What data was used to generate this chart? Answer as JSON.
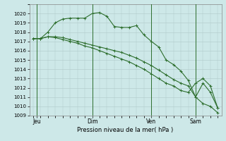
{
  "background_color": "#cde8e8",
  "grid_color": "#b0c8c8",
  "line_color": "#2d6e2d",
  "marker": "+",
  "title": "Pression niveau de la mer( hPa )",
  "ylim": [
    1009,
    1021
  ],
  "yticks": [
    1009,
    1010,
    1011,
    1012,
    1013,
    1014,
    1015,
    1016,
    1017,
    1018,
    1019,
    1020
  ],
  "day_labels": [
    "Jeu",
    "Dim",
    "Ven",
    "Sam"
  ],
  "day_positions": [
    0.5,
    8,
    16,
    22
  ],
  "series1_x": [
    0,
    1,
    2,
    3,
    4,
    5,
    6,
    7,
    8,
    9,
    10,
    11,
    12,
    13,
    14,
    15,
    16,
    17,
    18,
    19,
    20,
    21,
    22,
    23,
    24,
    25
  ],
  "series1": [
    1017.3,
    1017.3,
    1017.5,
    1017.5,
    1017.4,
    1017.2,
    1017.0,
    1016.8,
    1016.6,
    1016.4,
    1016.2,
    1016.0,
    1015.8,
    1015.5,
    1015.2,
    1014.8,
    1014.4,
    1013.9,
    1013.4,
    1012.9,
    1012.5,
    1012.2,
    1011.0,
    1010.3,
    1010.0,
    1009.3
  ],
  "series2_x": [
    0,
    1,
    2,
    3,
    4,
    5,
    6,
    7,
    8,
    9,
    10,
    11,
    12,
    13,
    14,
    15,
    16,
    17,
    18,
    19,
    20,
    21,
    22,
    23,
    24,
    25
  ],
  "series2": [
    1017.3,
    1017.3,
    1018.0,
    1019.0,
    1019.4,
    1019.5,
    1019.5,
    1019.5,
    1020.0,
    1020.1,
    1019.7,
    1018.6,
    1018.5,
    1018.5,
    1018.7,
    1017.7,
    1017.0,
    1016.4,
    1015.0,
    1014.5,
    1013.8,
    1012.8,
    1011.0,
    1012.5,
    1011.5,
    1009.8
  ],
  "series3_x": [
    0,
    1,
    2,
    3,
    4,
    5,
    6,
    7,
    8,
    9,
    10,
    11,
    12,
    13,
    14,
    15,
    16,
    17,
    18,
    19,
    20,
    21,
    22,
    23,
    24,
    25
  ],
  "series3": [
    1017.3,
    1017.3,
    1017.5,
    1017.4,
    1017.2,
    1017.0,
    1016.8,
    1016.5,
    1016.3,
    1016.0,
    1015.7,
    1015.4,
    1015.1,
    1014.8,
    1014.4,
    1014.0,
    1013.5,
    1013.0,
    1012.5,
    1012.2,
    1011.7,
    1011.5,
    1012.5,
    1013.0,
    1012.2,
    1009.8
  ],
  "xlim": [
    -0.5,
    25.5
  ],
  "title_fontsize": 6.0,
  "ytick_fontsize": 5.0,
  "xtick_fontsize": 5.5
}
